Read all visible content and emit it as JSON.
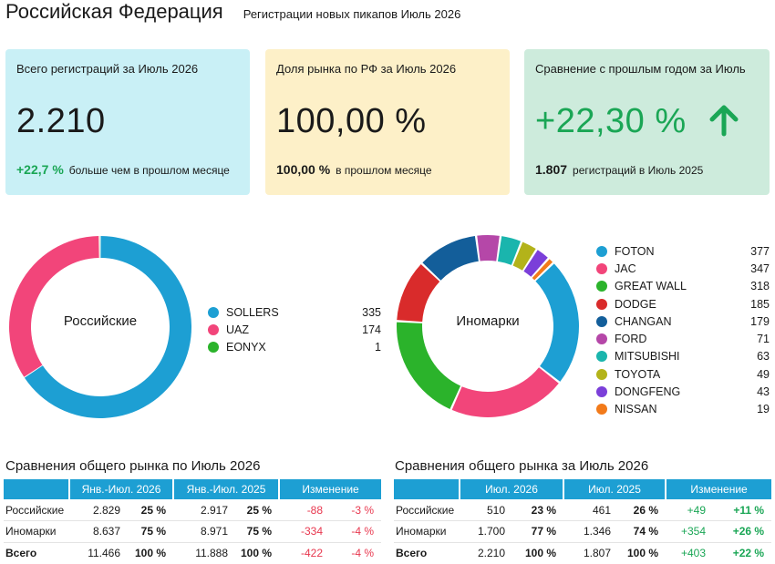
{
  "header": {
    "title": "Российская Федерация",
    "subtitle": "Регистрации новых пикапов Июль 2026"
  },
  "cards": [
    {
      "label": "Всего регистраций за Июль 2026",
      "value": "2.210",
      "foot_num": "+22,7 %",
      "foot_text": "больше чем в прошлом месяце"
    },
    {
      "label": "Доля рынка по РФ за Июль 2026",
      "value": "100,00 %",
      "foot_num": "100,00 %",
      "foot_text": "в прошлом месяце"
    },
    {
      "label": "Сравнение с прошлым годом за Июль",
      "value": "+22,30 %",
      "foot_num": "1.807",
      "foot_text": "регистраций в Июль 2025",
      "arrow_icon": "arrow-up-icon"
    }
  ],
  "colors": {
    "sollers": "#1d9fd3",
    "uaz": "#f2457a",
    "eonyx": "#2bb32b",
    "foton": "#1d9fd3",
    "jac": "#f2457a",
    "great_wall": "#2bb32b",
    "dodge": "#d92b2b",
    "changan": "#135e9a",
    "ford": "#b547a8",
    "mitsubishi": "#1ab5ad",
    "toyota": "#b3b31a",
    "dongfeng": "#7b3fd9",
    "nissan": "#f27a1a",
    "positive": "#1aa655",
    "negative": "#e8384f",
    "table_header": "#1d9fd3"
  },
  "chart_data": [
    {
      "type": "pie",
      "title": "Российские",
      "categories": [
        "SOLLERS",
        "UAZ",
        "EONYX"
      ],
      "values": [
        335,
        174,
        1
      ],
      "colors": [
        "#1d9fd3",
        "#f2457a",
        "#2bb32b"
      ],
      "legend": "right"
    },
    {
      "type": "pie",
      "title": "Иномарки",
      "categories": [
        "FOTON",
        "JAC",
        "GREAT WALL",
        "DODGE",
        "CHANGAN",
        "FORD",
        "MITSUBISHI",
        "TOYOTA",
        "DONGFENG",
        "NISSAN"
      ],
      "values": [
        377,
        347,
        318,
        185,
        179,
        71,
        63,
        49,
        43,
        19
      ],
      "colors": [
        "#1d9fd3",
        "#f2457a",
        "#2bb32b",
        "#d92b2b",
        "#135e9a",
        "#b547a8",
        "#1ab5ad",
        "#b3b31a",
        "#7b3fd9",
        "#f27a1a"
      ],
      "legend": "right"
    },
    {
      "type": "table",
      "title": "Сравнения общего рынка по Июль 2026",
      "headers": [
        "",
        "Янв.-Июл. 2026",
        "Янв.-Июл. 2025",
        "Изменение"
      ],
      "rows": [
        {
          "label": "Российские",
          "cur": "2.829",
          "cur_pct": "25 %",
          "prev": "2.917",
          "prev_pct": "25 %",
          "chg": "-88",
          "chg_pct": "-3 %"
        },
        {
          "label": "Иномарки",
          "cur": "8.637",
          "cur_pct": "75 %",
          "prev": "8.971",
          "prev_pct": "75 %",
          "chg": "-334",
          "chg_pct": "-4 %"
        },
        {
          "label": "Всего",
          "cur": "11.466",
          "cur_pct": "100 %",
          "prev": "11.888",
          "prev_pct": "100 %",
          "chg": "-422",
          "chg_pct": "-4 %"
        }
      ]
    },
    {
      "type": "table",
      "title": "Сравнения общего рынка за Июль 2026",
      "headers": [
        "",
        "Июл. 2026",
        "Июл. 2025",
        "Изменение"
      ],
      "rows": [
        {
          "label": "Российские",
          "cur": "510",
          "cur_pct": "23 %",
          "prev": "461",
          "prev_pct": "26 %",
          "chg": "+49",
          "chg_pct": "+11 %"
        },
        {
          "label": "Иномарки",
          "cur": "1.700",
          "cur_pct": "77 %",
          "prev": "1.346",
          "prev_pct": "74 %",
          "chg": "+354",
          "chg_pct": "+26 %"
        },
        {
          "label": "Всего",
          "cur": "2.210",
          "cur_pct": "100 %",
          "prev": "1.807",
          "prev_pct": "100 %",
          "chg": "+403",
          "chg_pct": "+22 %"
        }
      ]
    }
  ]
}
